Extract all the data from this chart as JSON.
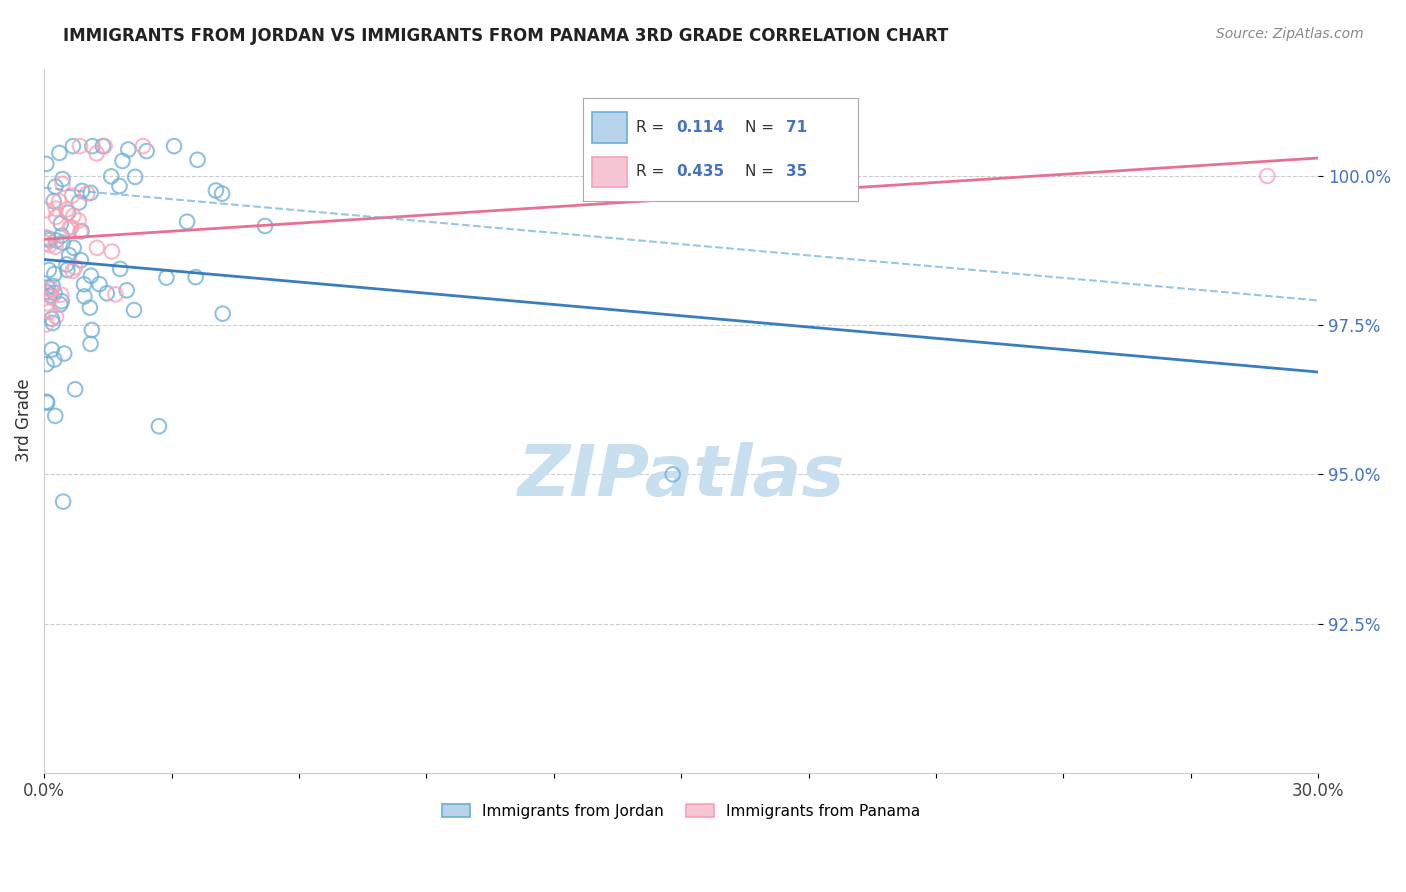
{
  "title": "IMMIGRANTS FROM JORDAN VS IMMIGRANTS FROM PANAMA 3RD GRADE CORRELATION CHART",
  "source": "Source: ZipAtlas.com",
  "xlabel_jordan": "Immigrants from Jordan",
  "xlabel_panama": "Immigrants from Panama",
  "ylabel": "3rd Grade",
  "x_min": 0.0,
  "x_max": 30.0,
  "y_min": 90.0,
  "y_max": 101.8,
  "y_ticks": [
    92.5,
    95.0,
    97.5,
    100.0
  ],
  "y_tick_labels": [
    "92.5%",
    "95.0%",
    "97.5%",
    "100.0%"
  ],
  "x_ticks": [
    0.0,
    3.0,
    6.0,
    9.0,
    12.0,
    15.0,
    18.0,
    21.0,
    24.0,
    27.0,
    30.0
  ],
  "x_tick_labels_show": [
    "0.0%",
    "",
    "",
    "",
    "",
    "",
    "",
    "",
    "",
    "",
    "30.0%"
  ],
  "R_jordan": 0.114,
  "N_jordan": 71,
  "R_panama": 0.435,
  "N_panama": 35,
  "color_jordan": "#6baed6",
  "color_panama": "#fa9fb5",
  "color_jordan_line": "#3a7dbf",
  "color_panama_line": "#e87090",
  "color_jordan_dash": "#6baed6",
  "watermark_color": "#c8dff0",
  "legend_R_color": "#222222",
  "legend_N_color": "#4472c4"
}
